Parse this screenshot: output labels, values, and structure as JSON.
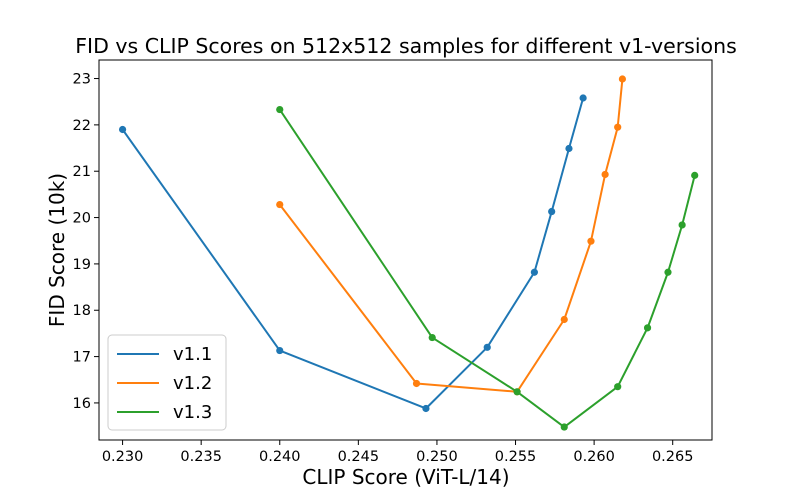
{
  "chart_data": {
    "type": "line",
    "title": "FID vs CLIP Scores on 512x512 samples for different v1-versions",
    "xlabel": "CLIP Score (ViT-L/14)",
    "ylabel": "FID Score (10k)",
    "xlim": [
      0.2285,
      0.2675
    ],
    "ylim": [
      15.2,
      23.4
    ],
    "xticks": [
      0.23,
      0.235,
      0.24,
      0.245,
      0.25,
      0.255,
      0.26,
      0.265
    ],
    "xtick_labels": [
      "0.230",
      "0.235",
      "0.240",
      "0.245",
      "0.250",
      "0.255",
      "0.260",
      "0.265"
    ],
    "yticks": [
      16,
      17,
      18,
      19,
      20,
      21,
      22,
      23
    ],
    "ytick_labels": [
      "16",
      "17",
      "18",
      "19",
      "20",
      "21",
      "22",
      "23"
    ],
    "grid": false,
    "legend_position": "lower-left",
    "series": [
      {
        "name": "v1.1",
        "color": "#1f77b4",
        "x": [
          0.23,
          0.24,
          0.2493,
          0.2532,
          0.2562,
          0.2573,
          0.2584,
          0.2593
        ],
        "y": [
          21.9,
          17.13,
          15.88,
          17.2,
          18.82,
          20.13,
          21.49,
          22.58
        ]
      },
      {
        "name": "v1.2",
        "color": "#ff7f0e",
        "x": [
          0.24,
          0.2487,
          0.2551,
          0.2581,
          0.2598,
          0.2607,
          0.2615,
          0.2618
        ],
        "y": [
          20.28,
          16.42,
          16.24,
          17.8,
          19.49,
          20.93,
          21.95,
          22.99
        ]
      },
      {
        "name": "v1.3",
        "color": "#2ca02c",
        "x": [
          0.24,
          0.2497,
          0.2551,
          0.2581,
          0.2615,
          0.2634,
          0.2647,
          0.2656,
          0.2664
        ],
        "y": [
          22.33,
          17.41,
          16.24,
          15.48,
          16.35,
          17.62,
          18.82,
          19.84,
          20.91
        ]
      }
    ]
  }
}
